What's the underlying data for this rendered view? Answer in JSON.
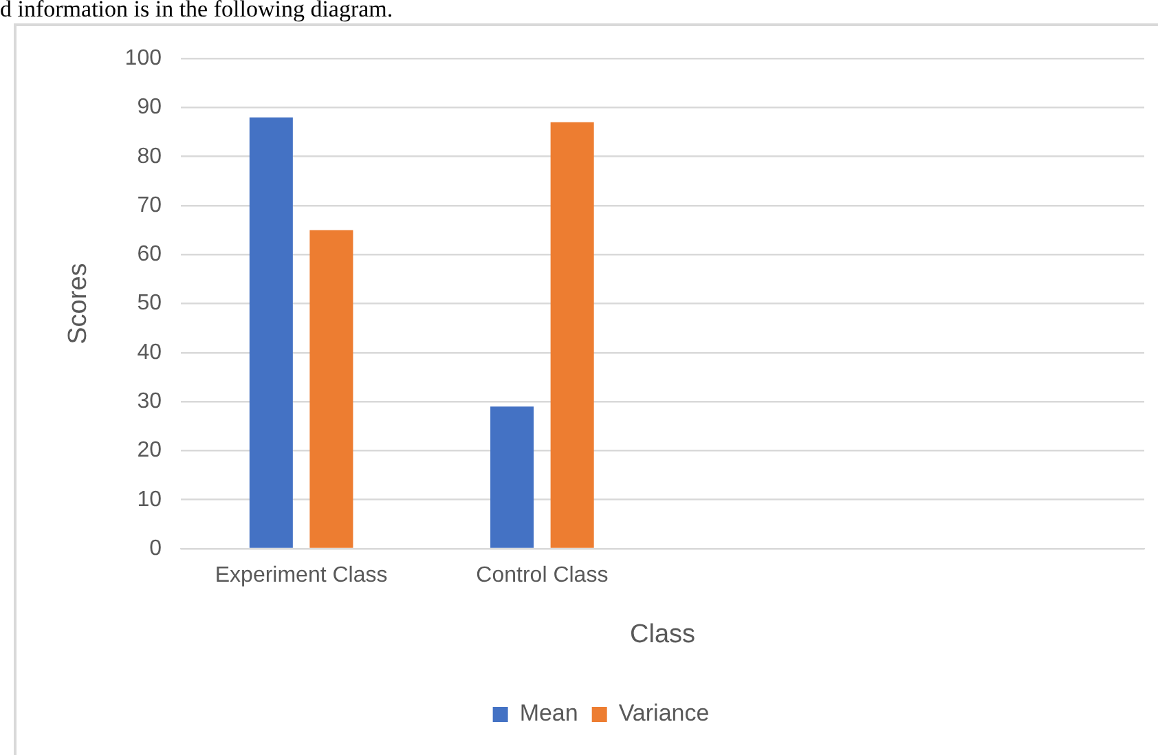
{
  "chart_data": {
    "type": "bar",
    "annotations": [
      "d information is in the following diagram."
    ],
    "xlabel": "Class",
    "ylabel": "Scores",
    "categories": [
      "Experiment Class",
      "Control Class",
      null,
      null
    ],
    "series": [
      {
        "name": "Mean",
        "color": "#4472c4",
        "values": [
          88,
          29,
          null,
          null
        ]
      },
      {
        "name": "Variance",
        "color": "#ed7d31",
        "values": [
          65,
          87,
          null,
          null
        ]
      }
    ],
    "ylim": [
      0,
      100
    ],
    "yticks": [
      0,
      10,
      20,
      30,
      40,
      50,
      60,
      70,
      80,
      90,
      100
    ],
    "grid": "y",
    "legend": "bottom"
  }
}
